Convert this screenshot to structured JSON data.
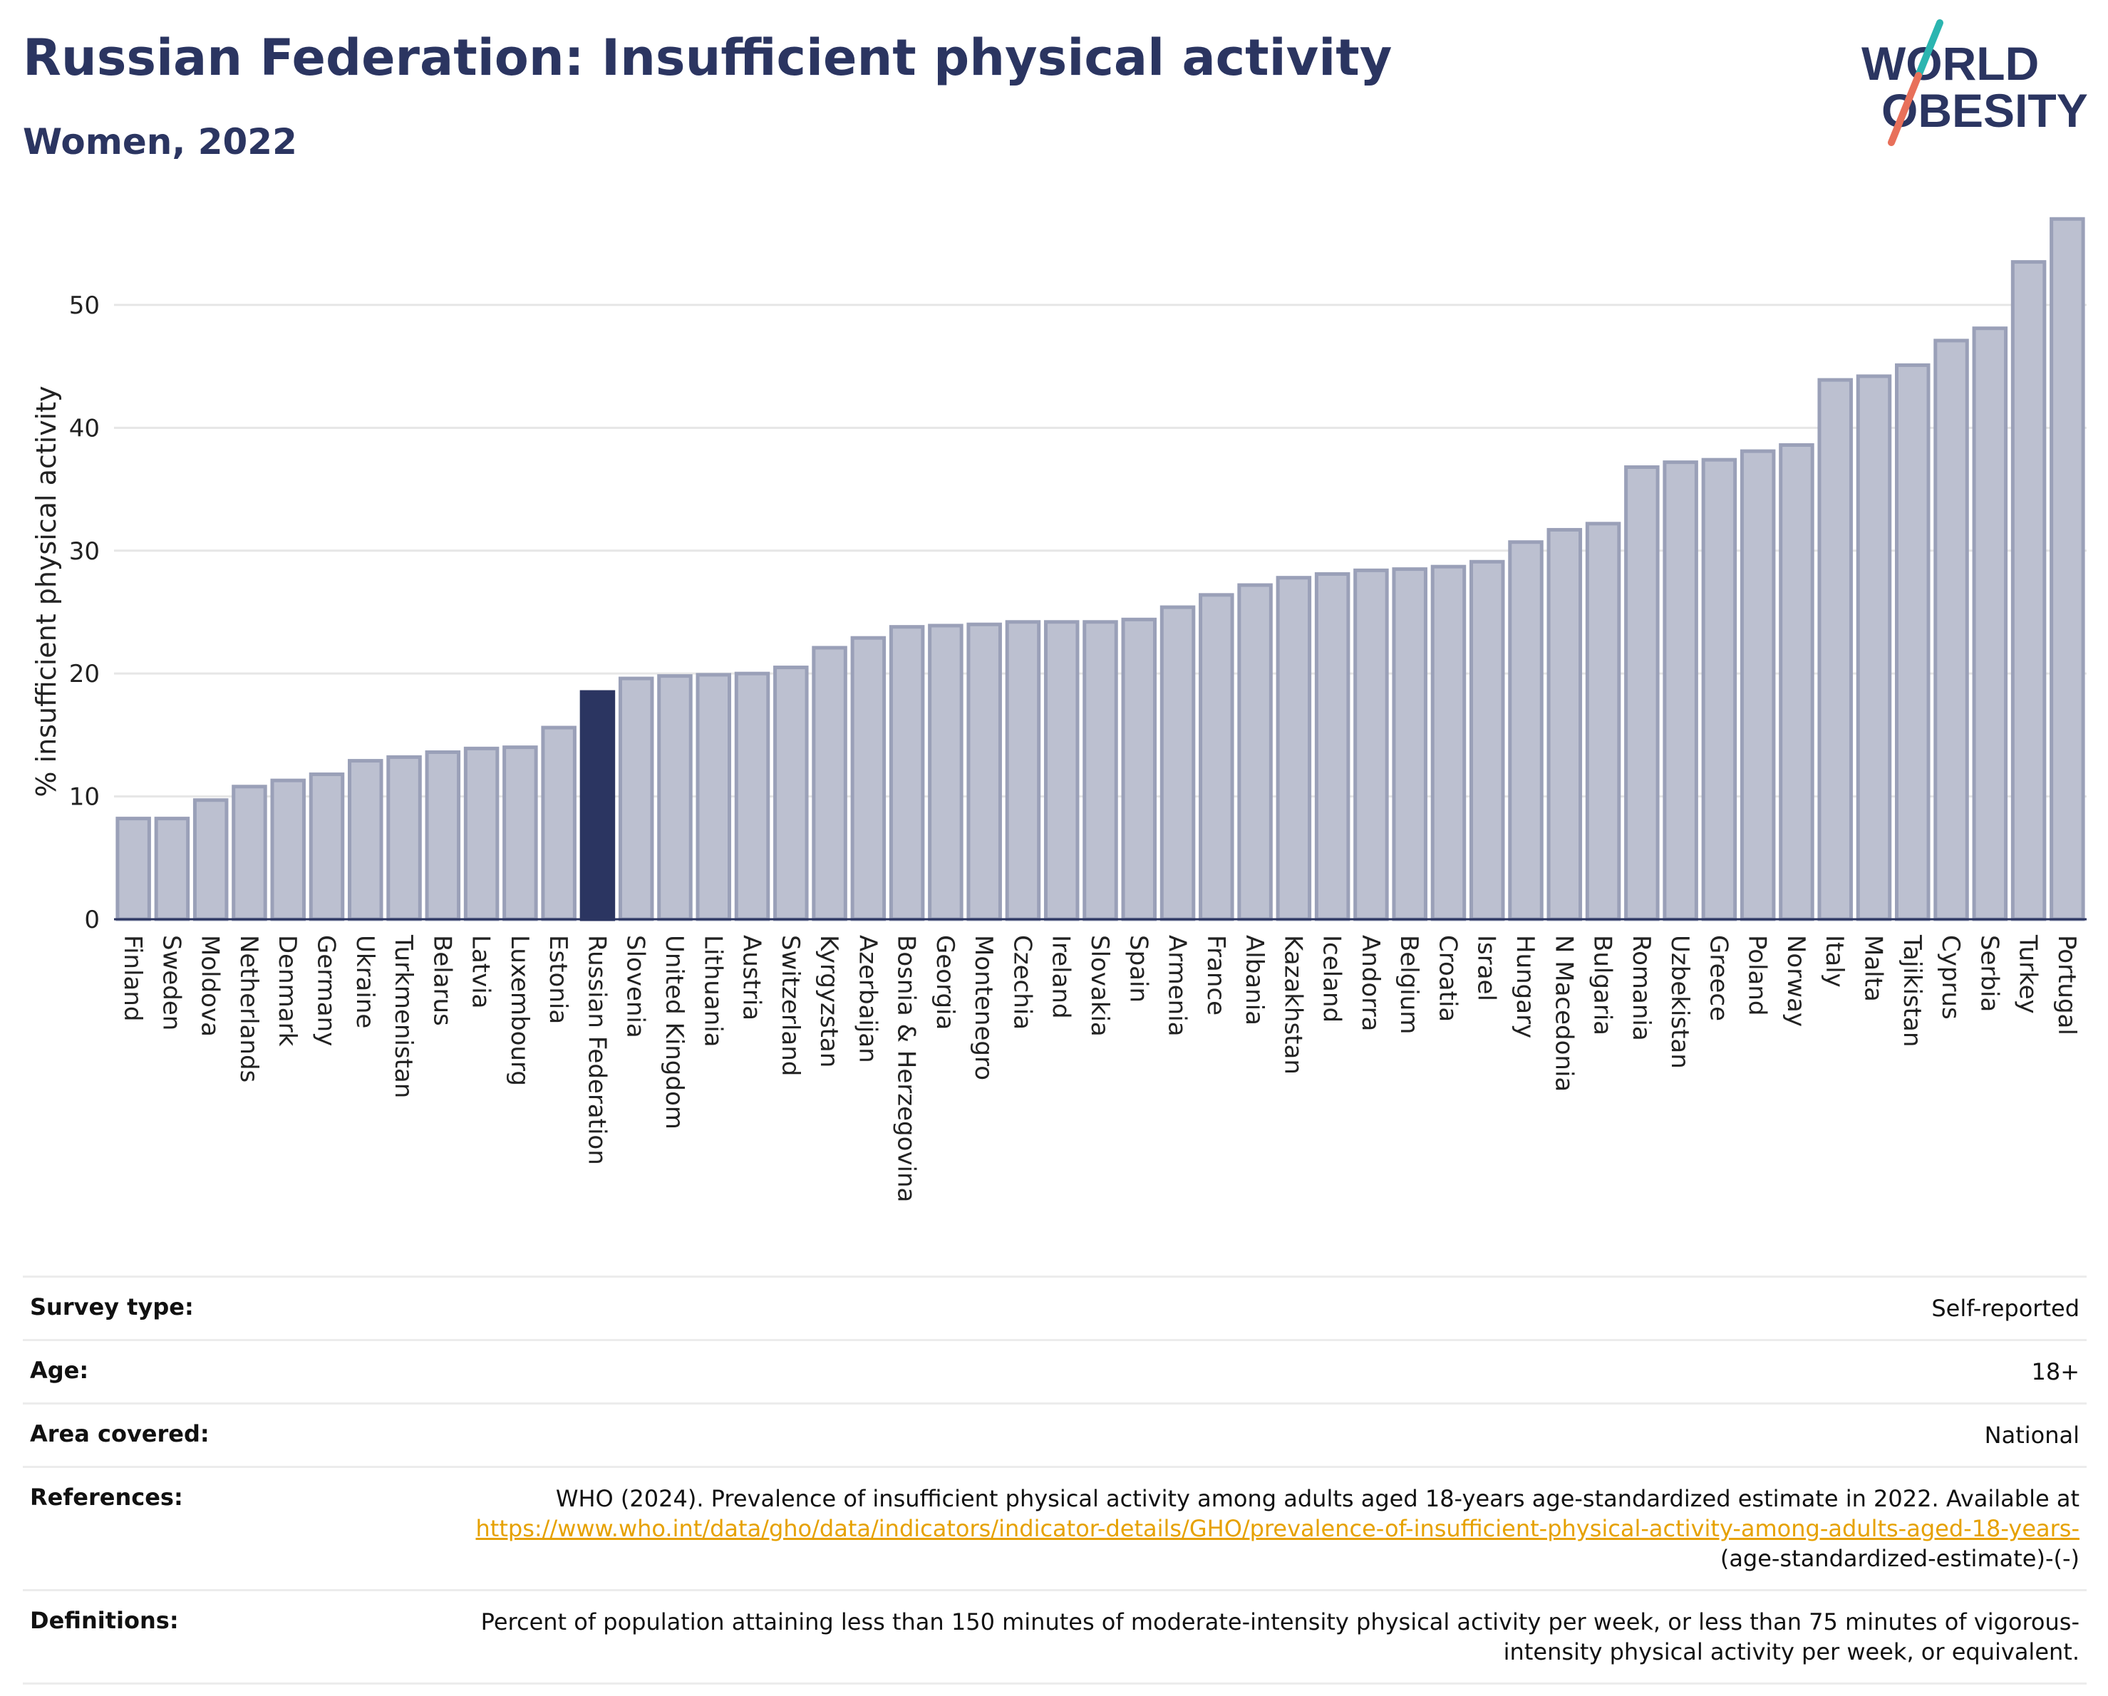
{
  "header": {
    "title": "Russian Federation: Insufficient physical activity",
    "subtitle": "Women, 2022"
  },
  "logo": {
    "line1": "WORLD",
    "line2": "OBESITY"
  },
  "colors": {
    "highlight_bar": "#2b3561",
    "bar_fill": "#bcc0d0",
    "bar_stroke": "#9aa0b8",
    "title": "#2b3561",
    "link": "#e6a100",
    "logo_slash_top": "#2bb5b0",
    "logo_slash_bottom": "#e8705a"
  },
  "chart_data": {
    "type": "bar",
    "title": "Russian Federation: Insufficient physical activity",
    "subtitle": "Women, 2022",
    "xlabel": "",
    "ylabel": "% insufficient physical activity",
    "ylim": [
      0,
      58
    ],
    "yticks": [
      0,
      10,
      20,
      30,
      40,
      50
    ],
    "grid": true,
    "highlight": "Russian Federation",
    "categories": [
      "Finland",
      "Sweden",
      "Moldova",
      "Netherlands",
      "Denmark",
      "Germany",
      "Ukraine",
      "Turkmenistan",
      "Belarus",
      "Latvia",
      "Luxembourg",
      "Estonia",
      "Russian Federation",
      "Slovenia",
      "United Kingdom",
      "Lithuania",
      "Austria",
      "Switzerland",
      "Kyrgyzstan",
      "Azerbaijan",
      "Bosnia & Herzegovina",
      "Georgia",
      "Montenegro",
      "Czechia",
      "Ireland",
      "Slovakia",
      "Spain",
      "Armenia",
      "France",
      "Albania",
      "Kazakhstan",
      "Iceland",
      "Andorra",
      "Belgium",
      "Croatia",
      "Israel",
      "Hungary",
      "N Macedonia",
      "Bulgaria",
      "Romania",
      "Uzbekistan",
      "Greece",
      "Poland",
      "Norway",
      "Italy",
      "Malta",
      "Tajikistan",
      "Cyprus",
      "Serbia",
      "Turkey",
      "Portugal"
    ],
    "values": [
      8.2,
      8.2,
      9.7,
      10.8,
      11.3,
      11.8,
      12.9,
      13.2,
      13.6,
      13.9,
      14.0,
      15.6,
      18.5,
      19.6,
      19.8,
      19.9,
      20.0,
      20.5,
      22.1,
      22.9,
      23.8,
      23.9,
      24.0,
      24.2,
      24.2,
      24.2,
      24.4,
      25.4,
      26.4,
      27.2,
      27.8,
      28.1,
      28.4,
      28.5,
      28.7,
      29.1,
      30.7,
      31.7,
      32.2,
      36.8,
      37.2,
      37.4,
      38.1,
      38.6,
      43.9,
      44.2,
      45.1,
      47.1,
      48.1,
      53.5,
      57.0
    ]
  },
  "meta": {
    "survey_type": {
      "label": "Survey type:",
      "value": "Self-reported"
    },
    "age": {
      "label": "Age:",
      "value": "18+"
    },
    "area": {
      "label": "Area covered:",
      "value": "National"
    },
    "references": {
      "label": "References:",
      "text": "WHO (2024). Prevalence of insufficient physical activity among adults aged 18-years age-standardized estimate in 2022. Available at",
      "link": "https://www.who.int/data/gho/data/indicators/indicator-details/GHO/prevalence-of-insufficient-physical-activity-among-adults-aged-18-years-",
      "suffix": "(age-standardized-estimate)-(-)"
    },
    "definitions": {
      "label": "Definitions:",
      "value": "Percent of population attaining less than 150 minutes of moderate-intensity physical activity per week, or less than 75 minutes of vigorous-intensity physical activity per week, or equivalent."
    }
  }
}
